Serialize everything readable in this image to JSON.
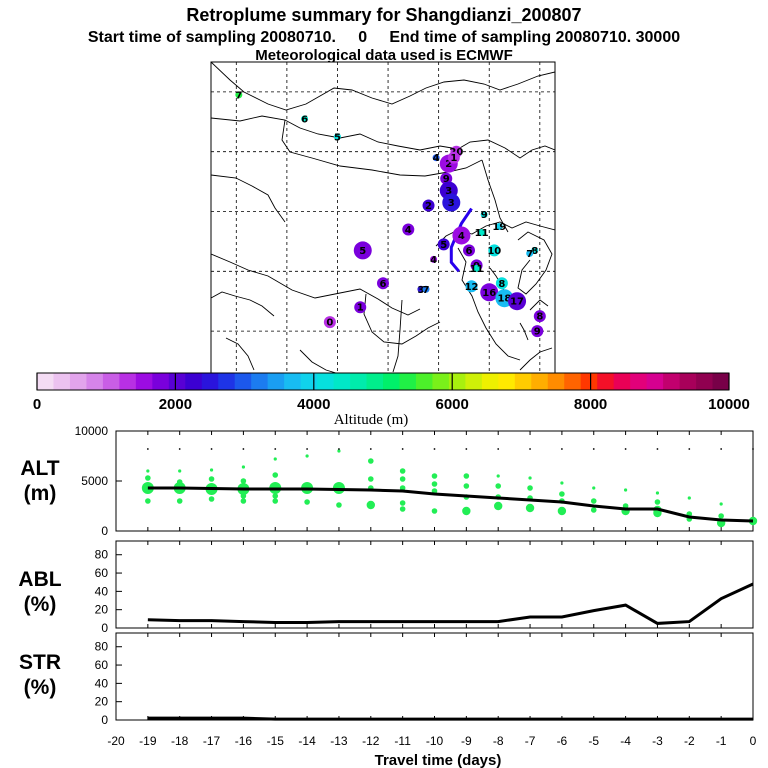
{
  "title": {
    "line1": "Retroplume summary for Shangdianzi_200807",
    "line2": "Start time of sampling 20080710.     0     End time of sampling 20080710. 30000",
    "line3": "Meteorological data used is ECMWF"
  },
  "map": {
    "markers": [
      {
        "label": "7",
        "lon": 70.5,
        "lat": 59.5,
        "alt": 5300,
        "r": "s"
      },
      {
        "label": "6",
        "lon": 83.5,
        "lat": 55.5,
        "alt": 4300,
        "r": "s"
      },
      {
        "label": "5",
        "lon": 90.0,
        "lat": 52.5,
        "alt": 4200,
        "r": "s"
      },
      {
        "label": "20",
        "lon": 113.5,
        "lat": 50.0,
        "alt": 1200,
        "r": "m"
      },
      {
        "label": "4",
        "lon": 109.5,
        "lat": 49.0,
        "alt": 2900,
        "r": "s"
      },
      {
        "label": "2",
        "lon": 112.0,
        "lat": 48.0,
        "alt": 1500,
        "r": "l"
      },
      {
        "label": "1",
        "lon": 113.0,
        "lat": 49.0,
        "alt": 1200,
        "r": "m"
      },
      {
        "label": "9",
        "lon": 111.5,
        "lat": 45.5,
        "alt": 1800,
        "r": "m"
      },
      {
        "label": "3",
        "lon": 112.0,
        "lat": 43.5,
        "alt": 2200,
        "r": "l"
      },
      {
        "label": "3",
        "lon": 112.5,
        "lat": 41.5,
        "alt": 2400,
        "r": "l"
      },
      {
        "label": "9",
        "lon": 119.0,
        "lat": 39.5,
        "alt": 4200,
        "r": "s"
      },
      {
        "label": "2",
        "lon": 108.0,
        "lat": 41.0,
        "alt": 2300,
        "r": "m"
      },
      {
        "label": "4",
        "lon": 104.0,
        "lat": 37.0,
        "alt": 1800,
        "r": "m"
      },
      {
        "label": "4",
        "lon": 114.5,
        "lat": 36.0,
        "alt": 1600,
        "r": "l"
      },
      {
        "label": "5",
        "lon": 95.0,
        "lat": 33.5,
        "alt": 1800,
        "r": "l"
      },
      {
        "label": "4",
        "lon": 109.0,
        "lat": 32.0,
        "alt": 1600,
        "r": "s"
      },
      {
        "label": "5",
        "lon": 111.0,
        "lat": 34.5,
        "alt": 2200,
        "r": "m"
      },
      {
        "label": "9",
        "lon": 117.5,
        "lat": 31.0,
        "alt": 1700,
        "r": "m"
      },
      {
        "label": "6",
        "lon": 116.0,
        "lat": 33.5,
        "alt": 1900,
        "r": "m"
      },
      {
        "label": "10",
        "lon": 121.0,
        "lat": 33.5,
        "alt": 4200,
        "r": "m"
      },
      {
        "label": "11",
        "lon": 118.5,
        "lat": 36.5,
        "alt": 4300,
        "r": "s"
      },
      {
        "label": "19",
        "lon": 122.0,
        "lat": 37.5,
        "alt": 4000,
        "r": "s"
      },
      {
        "label": "8",
        "lon": 129.0,
        "lat": 33.5,
        "alt": 4200,
        "r": "s"
      },
      {
        "label": "7",
        "lon": 128.0,
        "lat": 33.0,
        "alt": 3800,
        "r": "s"
      },
      {
        "label": "11",
        "lon": 117.5,
        "lat": 30.5,
        "alt": 4300,
        "r": "s"
      },
      {
        "label": "6",
        "lon": 99.0,
        "lat": 28.0,
        "alt": 1800,
        "r": "m"
      },
      {
        "label": "3",
        "lon": 106.5,
        "lat": 27.0,
        "alt": 2600,
        "r": "s"
      },
      {
        "label": "7",
        "lon": 107.5,
        "lat": 27.0,
        "alt": 3300,
        "r": "s"
      },
      {
        "label": "12",
        "lon": 116.5,
        "lat": 27.5,
        "alt": 3700,
        "r": "m"
      },
      {
        "label": "8",
        "lon": 122.5,
        "lat": 28.0,
        "alt": 4200,
        "r": "m"
      },
      {
        "label": "16",
        "lon": 120.0,
        "lat": 26.5,
        "alt": 1900,
        "r": "l"
      },
      {
        "label": "18",
        "lon": 123.0,
        "lat": 25.5,
        "alt": 3800,
        "r": "l"
      },
      {
        "label": "17",
        "lon": 125.5,
        "lat": 25.0,
        "alt": 2000,
        "r": "l"
      },
      {
        "label": "1",
        "lon": 94.5,
        "lat": 24.0,
        "alt": 1700,
        "r": "m"
      },
      {
        "label": "0",
        "lon": 88.5,
        "lat": 21.5,
        "alt": 1300,
        "r": "m"
      },
      {
        "label": "8",
        "lon": 130.0,
        "lat": 22.5,
        "alt": 1800,
        "r": "m"
      },
      {
        "label": "9",
        "lon": 129.5,
        "lat": 20.0,
        "alt": 1700,
        "r": "m"
      }
    ]
  },
  "colorbar": {
    "colors": [
      "#f4dcf4",
      "#ecc2f0",
      "#e2a4ec",
      "#d684ea",
      "#c95ee6",
      "#b830e4",
      "#9c0ce2",
      "#7a00dc",
      "#5800d4",
      "#3c00d2",
      "#2a14dc",
      "#1e34e6",
      "#1c58ec",
      "#1c7cf0",
      "#1a9ef2",
      "#18bcf2",
      "#10d2ec",
      "#06e0de",
      "#00e8c8",
      "#00ecac",
      "#00ee8c",
      "#00f06a",
      "#20f046",
      "#4cf02a",
      "#7af01a",
      "#a8f00e",
      "#cef008",
      "#eef000",
      "#ffea00",
      "#ffcc00",
      "#ffae00",
      "#ff8c00",
      "#ff6400",
      "#ff3800",
      "#f41028",
      "#ea0056",
      "#e2007a",
      "#d60090",
      "#c2006e",
      "#a8005a",
      "#900050",
      "#780048"
    ],
    "min": 0,
    "max": 10000,
    "tick_labels": [
      "0",
      "2000",
      "4000",
      "6000",
      "8000",
      "10000"
    ],
    "label": "Altitude (m)"
  },
  "panels": {
    "alt": {
      "label": "ALT",
      "unit": "(m)",
      "yticks": [
        "10000",
        "5000",
        "0"
      ]
    },
    "abl": {
      "label": "ABL",
      "unit": "(%)",
      "yticks": [
        "80",
        "60",
        "40",
        "20",
        "0"
      ]
    },
    "str": {
      "label": "STR",
      "unit": "(%)",
      "yticks": [
        "80",
        "60",
        "40",
        "20",
        "0"
      ]
    }
  },
  "xaxis": {
    "label": "Travel time (days)",
    "ticks": [
      "-20",
      "-19",
      "-18",
      "-17",
      "-16",
      "-15",
      "-14",
      "-13",
      "-12",
      "-11",
      "-10",
      "-9",
      "-8",
      "-7",
      "-6",
      "-5",
      "-4",
      "-3",
      "-2",
      "-1",
      "0"
    ]
  },
  "chart_data": [
    {
      "type": "line",
      "title": "ALT",
      "ylabel": "ALT (m)",
      "xlabel": "Travel time (days)",
      "xlim": [
        -20,
        0
      ],
      "ylim": [
        0,
        10000
      ],
      "mean": {
        "x": [
          -19,
          -18,
          -17,
          -16,
          -15,
          -14,
          -13,
          -12,
          -11,
          -10,
          -9,
          -8,
          -7,
          -6,
          -5,
          -4,
          -3,
          -2,
          -1,
          0
        ],
        "y": [
          4300,
          4300,
          4250,
          4200,
          4200,
          4200,
          4150,
          4100,
          4000,
          3700,
          3500,
          3300,
          3100,
          2900,
          2500,
          2200,
          2200,
          1400,
          1100,
          1000
        ]
      },
      "clusters": [
        {
          "x": -19,
          "y": [
            6000,
            5300,
            4300,
            3000
          ],
          "size": [
            1,
            2,
            4,
            2
          ]
        },
        {
          "x": -18,
          "y": [
            6000,
            4900,
            4300,
            3000
          ],
          "size": [
            1,
            2,
            4,
            2
          ]
        },
        {
          "x": -17,
          "y": [
            6100,
            5200,
            4200,
            3200
          ],
          "size": [
            1,
            2,
            4,
            2
          ]
        },
        {
          "x": -16,
          "y": [
            6400,
            5000,
            4200,
            3500,
            3000
          ],
          "size": [
            1,
            2,
            4,
            2,
            2
          ]
        },
        {
          "x": -15,
          "y": [
            7200,
            5600,
            4300,
            3500,
            3000
          ],
          "size": [
            1,
            2,
            4,
            2,
            2
          ]
        },
        {
          "x": -14,
          "y": [
            7500,
            4300,
            2900
          ],
          "size": [
            1,
            4,
            2
          ]
        },
        {
          "x": -13,
          "y": [
            8000,
            4300,
            2600
          ],
          "size": [
            1,
            4,
            2
          ]
        },
        {
          "x": -12,
          "y": [
            7000,
            5200,
            4300,
            2600
          ],
          "size": [
            2,
            2,
            2,
            3
          ]
        },
        {
          "x": -11,
          "y": [
            6000,
            5200,
            4300,
            2800,
            2200
          ],
          "size": [
            2,
            2,
            2,
            2,
            2
          ]
        },
        {
          "x": -10,
          "y": [
            5500,
            4700,
            4000,
            2000
          ],
          "size": [
            2,
            2,
            2,
            2
          ]
        },
        {
          "x": -9,
          "y": [
            5500,
            4500,
            3400,
            2000
          ],
          "size": [
            2,
            2,
            2,
            3
          ]
        },
        {
          "x": -8,
          "y": [
            5500,
            4500,
            3400,
            2500
          ],
          "size": [
            1,
            2,
            2,
            3
          ]
        },
        {
          "x": -7,
          "y": [
            5300,
            4300,
            3300,
            2300
          ],
          "size": [
            1,
            2,
            2,
            3
          ]
        },
        {
          "x": -6,
          "y": [
            4800,
            3700,
            3000,
            2000
          ],
          "size": [
            1,
            2,
            2,
            3
          ]
        },
        {
          "x": -5,
          "y": [
            4300,
            3000,
            2100
          ],
          "size": [
            1,
            2,
            2
          ]
        },
        {
          "x": -4,
          "y": [
            4100,
            2500,
            2000
          ],
          "size": [
            1,
            2,
            3
          ]
        },
        {
          "x": -3,
          "y": [
            3800,
            2900,
            2100,
            1800
          ],
          "size": [
            1,
            2,
            3,
            3
          ]
        },
        {
          "x": -2,
          "y": [
            3300,
            1700,
            1200
          ],
          "size": [
            1,
            2,
            2
          ]
        },
        {
          "x": -1,
          "y": [
            2700,
            1500,
            800
          ],
          "size": [
            1,
            2,
            3
          ]
        },
        {
          "x": 0,
          "y": [
            1000
          ],
          "size": [
            3
          ]
        }
      ]
    },
    {
      "type": "line",
      "title": "ABL",
      "ylabel": "ABL (%)",
      "xlabel": "Travel time (days)",
      "xlim": [
        -20,
        0
      ],
      "ylim": [
        0,
        95
      ],
      "x": [
        -19,
        -18,
        -17,
        -16,
        -15,
        -14,
        -13,
        -12,
        -11,
        -10,
        -9,
        -8,
        -7,
        -6,
        -5,
        -4,
        -3,
        -2,
        -1,
        0
      ],
      "y": [
        9,
        8,
        8,
        7,
        6,
        6,
        7,
        7,
        7,
        7,
        7,
        7,
        12,
        12,
        19,
        25,
        5,
        7,
        32,
        48
      ]
    },
    {
      "type": "line",
      "title": "STR",
      "ylabel": "STR (%)",
      "xlabel": "Travel time (days)",
      "xlim": [
        -20,
        0
      ],
      "ylim": [
        0,
        95
      ],
      "x": [
        -19,
        -18,
        -17,
        -16,
        -15,
        -14,
        -13,
        -12,
        -11,
        -10,
        -9,
        -8,
        -7,
        -6,
        -5,
        -4,
        -3,
        -2,
        -1,
        0
      ],
      "y": [
        2,
        2,
        2,
        2,
        1,
        1,
        1,
        1,
        1,
        1,
        1,
        1,
        1,
        1,
        1,
        1,
        1,
        1,
        1,
        1
      ]
    }
  ]
}
